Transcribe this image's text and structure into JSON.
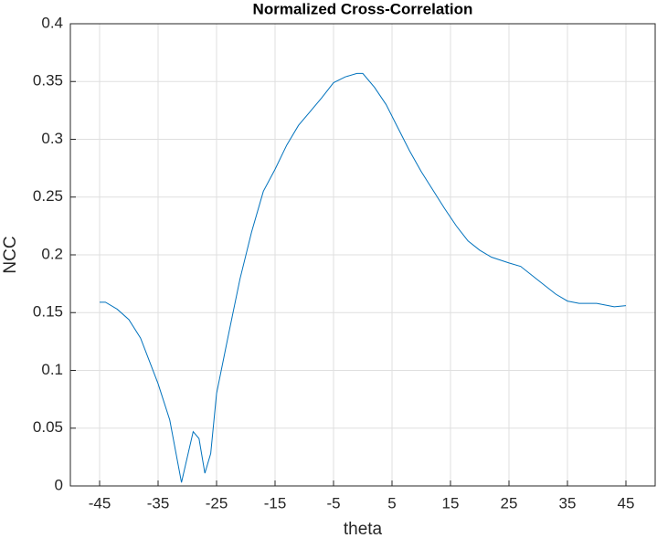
{
  "chart_data": {
    "type": "line",
    "title": "Normalized Cross-Correlation",
    "xlabel": "theta",
    "ylabel": "NCC",
    "x": [
      -45,
      -44,
      -42,
      -40,
      -38,
      -35,
      -33,
      -31,
      -30,
      -29,
      -28,
      -27,
      -26,
      -25,
      -23,
      -21,
      -19,
      -17,
      -15,
      -13,
      -11,
      -9,
      -7,
      -5,
      -3,
      -1,
      0,
      2,
      4,
      6,
      8,
      10,
      12,
      14,
      16,
      18,
      20,
      22,
      25,
      27,
      30,
      33,
      35,
      37,
      40,
      43,
      45
    ],
    "series": [
      {
        "name": "NCC",
        "color": "#0072bd",
        "values": [
          0.159,
          0.159,
          0.153,
          0.144,
          0.128,
          0.0885,
          0.057,
          0.003,
          0.025,
          0.047,
          0.041,
          0.011,
          0.028,
          0.08,
          0.13,
          0.179,
          0.22,
          0.255,
          0.274,
          0.295,
          0.312,
          0.324,
          0.336,
          0.349,
          0.354,
          0.357,
          0.357,
          0.345,
          0.33,
          0.31,
          0.29,
          0.272,
          0.256,
          0.24,
          0.225,
          0.212,
          0.204,
          0.198,
          0.193,
          0.19,
          0.178,
          0.166,
          0.16,
          0.158,
          0.158,
          0.155,
          0.156
        ]
      }
    ],
    "xlim": [
      -50,
      50
    ],
    "xticks": [
      -45,
      -35,
      -25,
      -15,
      -5,
      5,
      15,
      25,
      35,
      45
    ],
    "ylim": [
      0,
      0.4
    ],
    "yticks": [
      0,
      0.05,
      0.1,
      0.15,
      0.2,
      0.25,
      0.3,
      0.35,
      0.4
    ],
    "grid": true
  }
}
